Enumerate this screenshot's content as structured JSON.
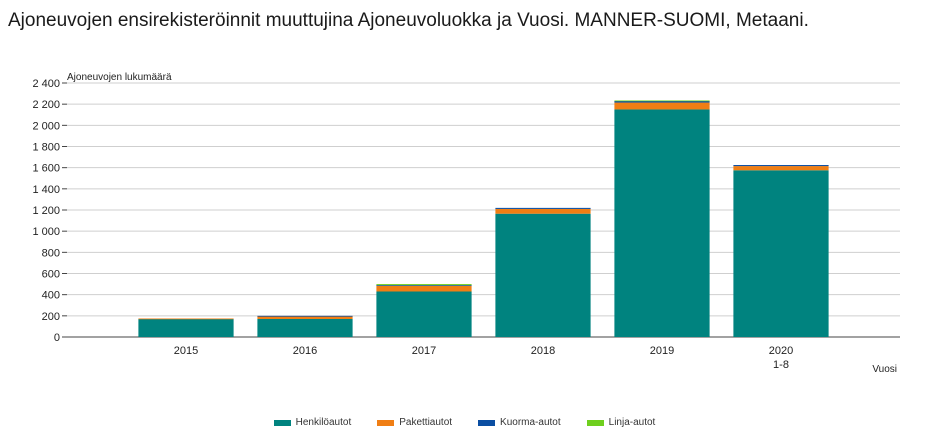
{
  "title": "Ajoneuvojen ensirekisteröinnit muuttujina Ajoneuvoluokka ja Vuosi. MANNER-SUOMI, Metaani.",
  "chart_data": {
    "type": "bar",
    "stacked": true,
    "title": "Ajoneuvojen ensirekisteröinnit muuttujina Ajoneuvoluokka ja Vuosi. MANNER-SUOMI, Metaani.",
    "ylabel": "Ajoneuvojen lukumäärä",
    "xlabel": "Vuosi",
    "ylim": [
      0,
      2400
    ],
    "ytick_step": 200,
    "ytick_labels": [
      "0",
      "200",
      "400",
      "600",
      "800",
      "1 000",
      "1 200",
      "1 400",
      "1 600",
      "1 800",
      "2 000",
      "2 200",
      "2 400"
    ],
    "categories": [
      "2015",
      "2016",
      "2017",
      "2018",
      "2019",
      "2020"
    ],
    "category_sublabels": [
      "",
      "",
      "",
      "",
      "",
      "1-8"
    ],
    "grid": true,
    "legend_position": "bottom",
    "series": [
      {
        "name": "Henkilöautot",
        "color": "#00837f",
        "values": [
          170,
          170,
          430,
          1165,
          2150,
          1575
        ]
      },
      {
        "name": "Pakettiautot",
        "color": "#f07e14",
        "values": [
          5,
          25,
          55,
          45,
          65,
          40
        ]
      },
      {
        "name": "Kuorma-autot",
        "color": "#0b4ea2",
        "values": [
          0,
          5,
          5,
          10,
          15,
          10
        ]
      },
      {
        "name": "Linja-autot",
        "color": "#6fcf1e",
        "values": [
          0,
          0,
          10,
          0,
          5,
          0
        ]
      }
    ]
  }
}
